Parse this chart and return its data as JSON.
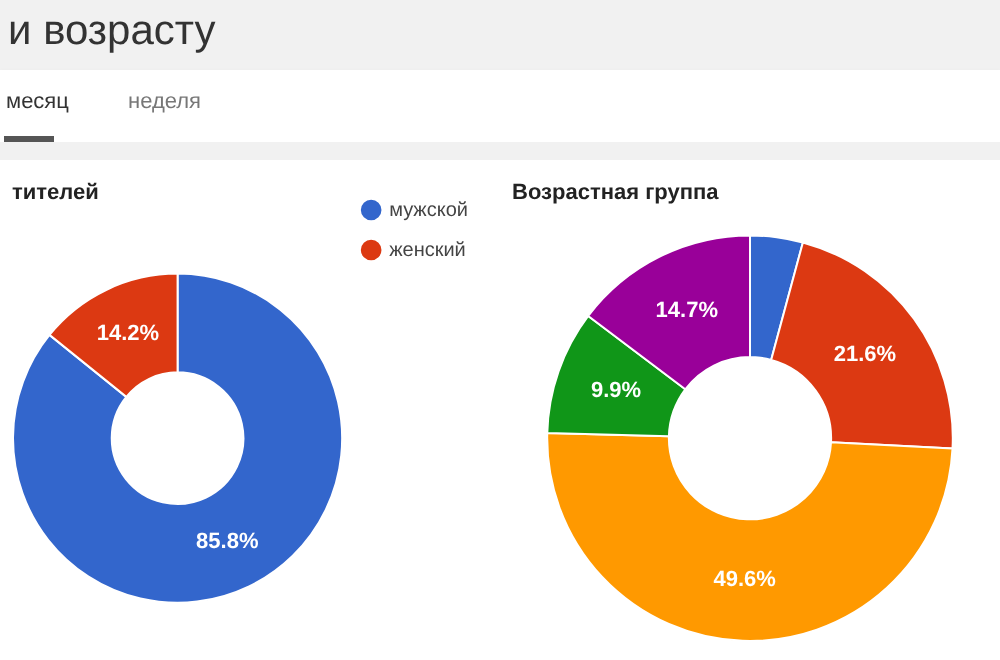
{
  "chart_data": [
    {
      "type": "donut",
      "title": "тителей",
      "annotations": [
        "и возрасту",
        "месяц",
        "неделя"
      ],
      "categories": [
        "мужской",
        "женский"
      ],
      "values": [
        85.8,
        14.2
      ],
      "colors": [
        "#3366cc",
        "#dc3912"
      ],
      "value_labels": [
        "85.8%",
        "14.2%"
      ],
      "legend": "right"
    },
    {
      "type": "donut",
      "title": "Возрастная группа",
      "categories": [
        null,
        null,
        null,
        null,
        null
      ],
      "values": [
        4.2,
        21.6,
        49.6,
        9.9,
        14.7
      ],
      "colors": [
        "#3366cc",
        "#dc3912",
        "#ff9900",
        "#109618",
        "#990099"
      ],
      "value_labels": [
        null,
        "21.6%",
        "49.6%",
        "9.9%",
        "14.7%"
      ]
    }
  ]
}
